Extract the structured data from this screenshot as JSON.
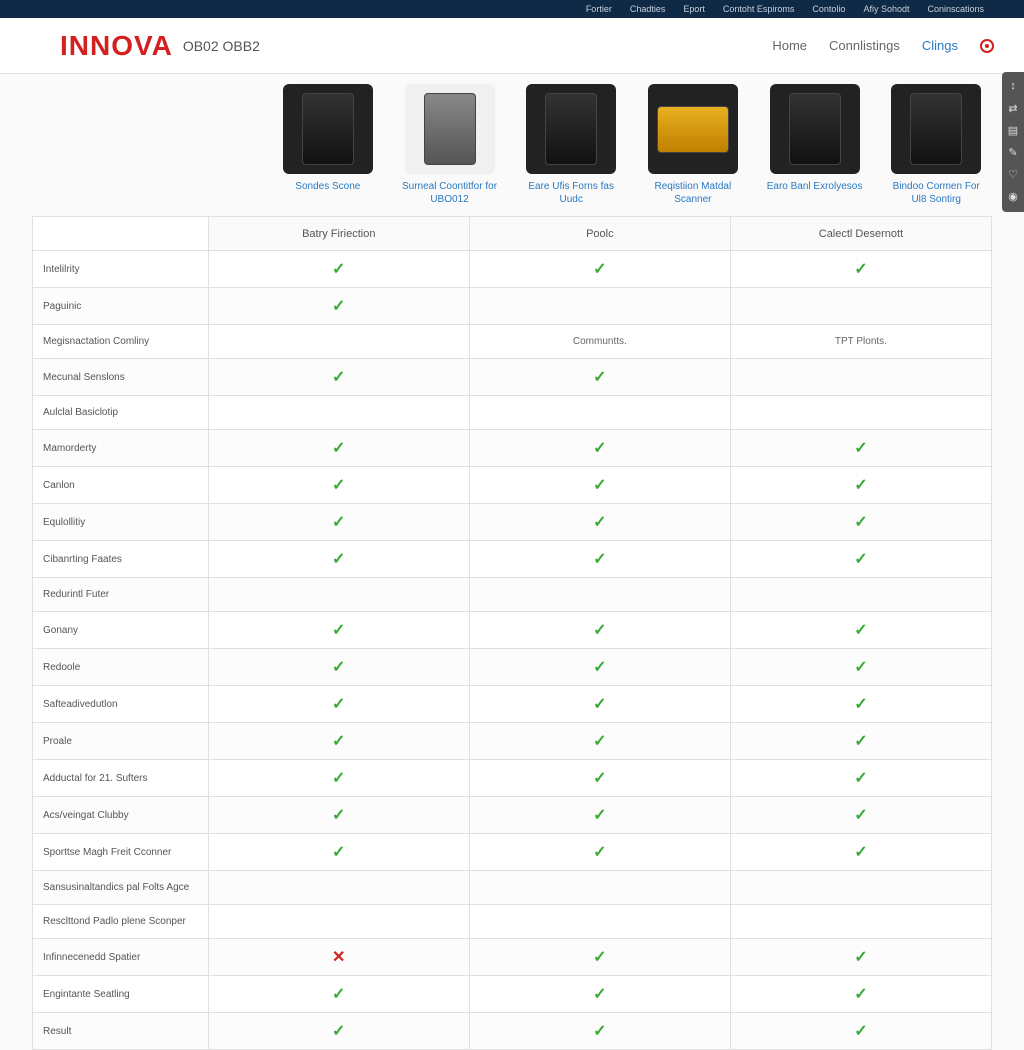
{
  "topbar": [
    "Fortier",
    "Chadties",
    "Eport",
    "Contoht Espiroms",
    "Contolio",
    "Afiy Sohodt",
    "Coninscations"
  ],
  "logo": "INNOVA",
  "sublogo": "OB02 OBB2",
  "nav": [
    {
      "label": "Home",
      "active": false
    },
    {
      "label": "Connlistings",
      "active": false
    },
    {
      "label": "Clings",
      "active": true
    }
  ],
  "columns": [
    "Batry Firiection",
    "Poolc",
    "Calectl Desernott"
  ],
  "products": [
    {
      "name": "Sondes Scone",
      "img": "dark"
    },
    {
      "name": "Surneal Coontitfor for UBO012",
      "img": "light"
    },
    {
      "name": "Eare Ufis Forns fas Uudc",
      "img": "dark"
    },
    {
      "name": "Reqistiion Matdal Scanner",
      "img": "yellow"
    },
    {
      "name": "Earo Banl Exrolyesos",
      "img": "dark"
    },
    {
      "name": "Bindoo Cormen For Ul8 Sontirg",
      "img": "dark"
    }
  ],
  "rows": [
    {
      "label": "Intelilrity",
      "cells": [
        "check",
        "check",
        "check"
      ]
    },
    {
      "label": "Paguinic",
      "cells": [
        "check",
        "",
        ""
      ]
    },
    {
      "label": "Megisnactation Comliny",
      "cells": [
        "",
        "Communtts.",
        "TPT Plonts."
      ]
    },
    {
      "label": "Mecunal Senslons",
      "cells": [
        "check",
        "check",
        ""
      ]
    },
    {
      "label": "Aulclal Basiclotip",
      "cells": [
        "",
        "",
        ""
      ]
    },
    {
      "label": "Mamorderty",
      "cells": [
        "check",
        "check",
        "check"
      ]
    },
    {
      "label": "Canlon",
      "cells": [
        "check",
        "check",
        "check"
      ]
    },
    {
      "label": "Equlollitiy",
      "cells": [
        "check",
        "check",
        "check"
      ]
    },
    {
      "label": "Cibanrting Faates",
      "cells": [
        "check",
        "check",
        "check"
      ]
    },
    {
      "label": "Redurintl Futer",
      "cells": [
        "",
        "",
        ""
      ]
    },
    {
      "label": "Gonany",
      "cells": [
        "check",
        "check",
        "check"
      ]
    },
    {
      "label": "Redoole",
      "cells": [
        "check",
        "check",
        "check"
      ]
    },
    {
      "label": "Safteadivedutlon",
      "cells": [
        "check",
        "check",
        "check"
      ]
    },
    {
      "label": "Proale",
      "cells": [
        "check",
        "check",
        "check"
      ]
    },
    {
      "label": "Adductal for 21. Sufters",
      "cells": [
        "check",
        "check",
        "check"
      ]
    },
    {
      "label": "Acs/veingat Clubby",
      "cells": [
        "check",
        "check",
        "check"
      ]
    },
    {
      "label": "Sporttse Magh Freit Cconner",
      "cells": [
        "check",
        "check",
        "check"
      ]
    },
    {
      "label": "Sansusinaltandics pal Folts Agce",
      "cells": [
        "",
        "",
        ""
      ]
    },
    {
      "label": "Resclttond Padlo plene Sconper",
      "cells": [
        "",
        "",
        ""
      ]
    },
    {
      "label": "Infinnecenedd Spatier",
      "cells": [
        "cross",
        "check",
        "check"
      ]
    },
    {
      "label": "Engintante Seatling",
      "cells": [
        "check",
        "check",
        "check"
      ]
    },
    {
      "label": "Result",
      "cells": [
        "check",
        "check",
        "check"
      ]
    }
  ],
  "sidetools": [
    "↕",
    "⇄",
    "▤",
    "✎",
    "♡",
    "◉"
  ]
}
